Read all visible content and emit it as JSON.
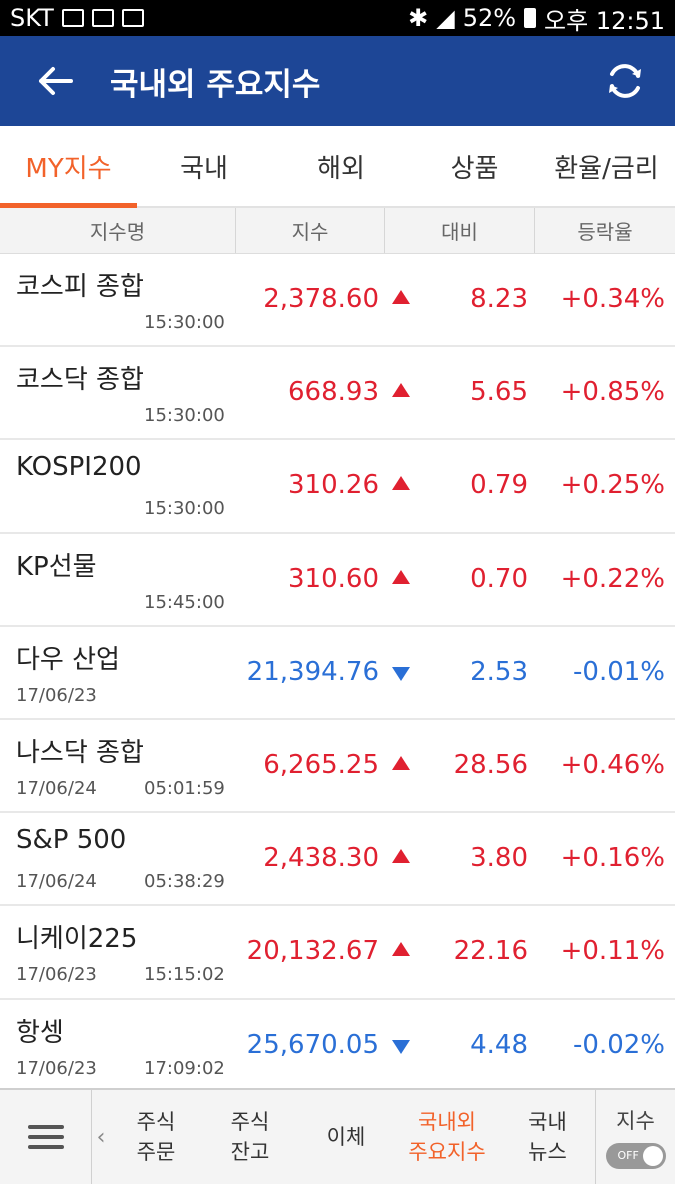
{
  "status_bar": {
    "carrier": "SKT",
    "battery": "52%",
    "time": "오후 12:51"
  },
  "app_bar": {
    "title": "국내외 주요지수",
    "back_icon": "back-arrow-icon",
    "refresh_icon": "refresh-icon"
  },
  "tabs": [
    {
      "label": "MY지수",
      "active": true
    },
    {
      "label": "국내",
      "active": false
    },
    {
      "label": "해외",
      "active": false
    },
    {
      "label": "상품",
      "active": false
    },
    {
      "label": "환율/금리",
      "active": false
    }
  ],
  "table": {
    "headers": [
      "지수명",
      "지수",
      "대비",
      "등락율"
    ],
    "rows": [
      {
        "name": "코스피 종합",
        "date": "",
        "time": "15:30:00",
        "value": "2,378.60",
        "direction": "up",
        "change": "8.23",
        "rate": "+0.34%"
      },
      {
        "name": "코스닥 종합",
        "date": "",
        "time": "15:30:00",
        "value": "668.93",
        "direction": "up",
        "change": "5.65",
        "rate": "+0.85%"
      },
      {
        "name": "KOSPI200",
        "date": "",
        "time": "15:30:00",
        "value": "310.26",
        "direction": "up",
        "change": "0.79",
        "rate": "+0.25%"
      },
      {
        "name": "KP선물",
        "date": "",
        "time": "15:45:00",
        "value": "310.60",
        "direction": "up",
        "change": "0.70",
        "rate": "+0.22%"
      },
      {
        "name": "다우 산업",
        "date": "17/06/23",
        "time": "",
        "value": "21,394.76",
        "direction": "down",
        "change": "2.53",
        "rate": "-0.01%"
      },
      {
        "name": "나스닥 종합",
        "date": "17/06/24",
        "time": "05:01:59",
        "value": "6,265.25",
        "direction": "up",
        "change": "28.56",
        "rate": "+0.46%"
      },
      {
        "name": "S&P 500",
        "date": "17/06/24",
        "time": "05:38:29",
        "value": "2,438.30",
        "direction": "up",
        "change": "3.80",
        "rate": "+0.16%"
      },
      {
        "name": "니케이225",
        "date": "17/06/23",
        "time": "15:15:02",
        "value": "20,132.67",
        "direction": "up",
        "change": "22.16",
        "rate": "+0.11%"
      },
      {
        "name": "항셍",
        "date": "17/06/23",
        "time": "17:09:02",
        "value": "25,670.05",
        "direction": "down",
        "change": "4.48",
        "rate": "-0.02%"
      }
    ]
  },
  "bottom_nav": {
    "items": [
      {
        "line1": "주식",
        "line2": "주문",
        "active": false
      },
      {
        "line1": "주식",
        "line2": "잔고",
        "active": false
      },
      {
        "line1": "이체",
        "line2": "",
        "active": false
      },
      {
        "line1": "국내외",
        "line2": "주요지수",
        "active": true
      },
      {
        "line1": "국내",
        "line2": "뉴스",
        "active": false
      }
    ],
    "toggle_label": "지수",
    "toggle_state": "OFF"
  },
  "colors": {
    "header_bg": "#1d4696",
    "accent": "#f2622a",
    "up": "#e02030",
    "down": "#2a6fd6"
  }
}
